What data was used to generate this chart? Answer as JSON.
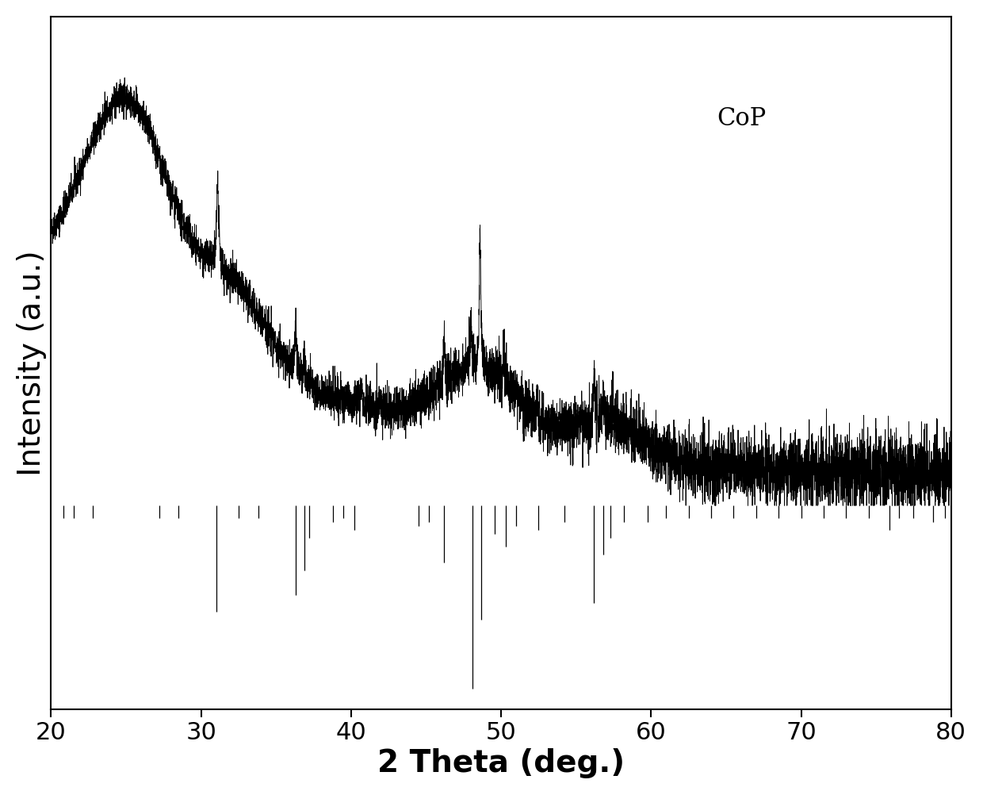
{
  "title": "CoP",
  "xlabel": "2 Theta (deg.)",
  "ylabel": "Intensity (a.u.)",
  "xlim": [
    20,
    80
  ],
  "title_fontsize": 22,
  "label_fontsize": 28,
  "tick_fontsize": 22,
  "line_color": "#000000",
  "background_color": "#ffffff",
  "xticks": [
    20,
    30,
    40,
    50,
    60,
    70,
    80
  ]
}
